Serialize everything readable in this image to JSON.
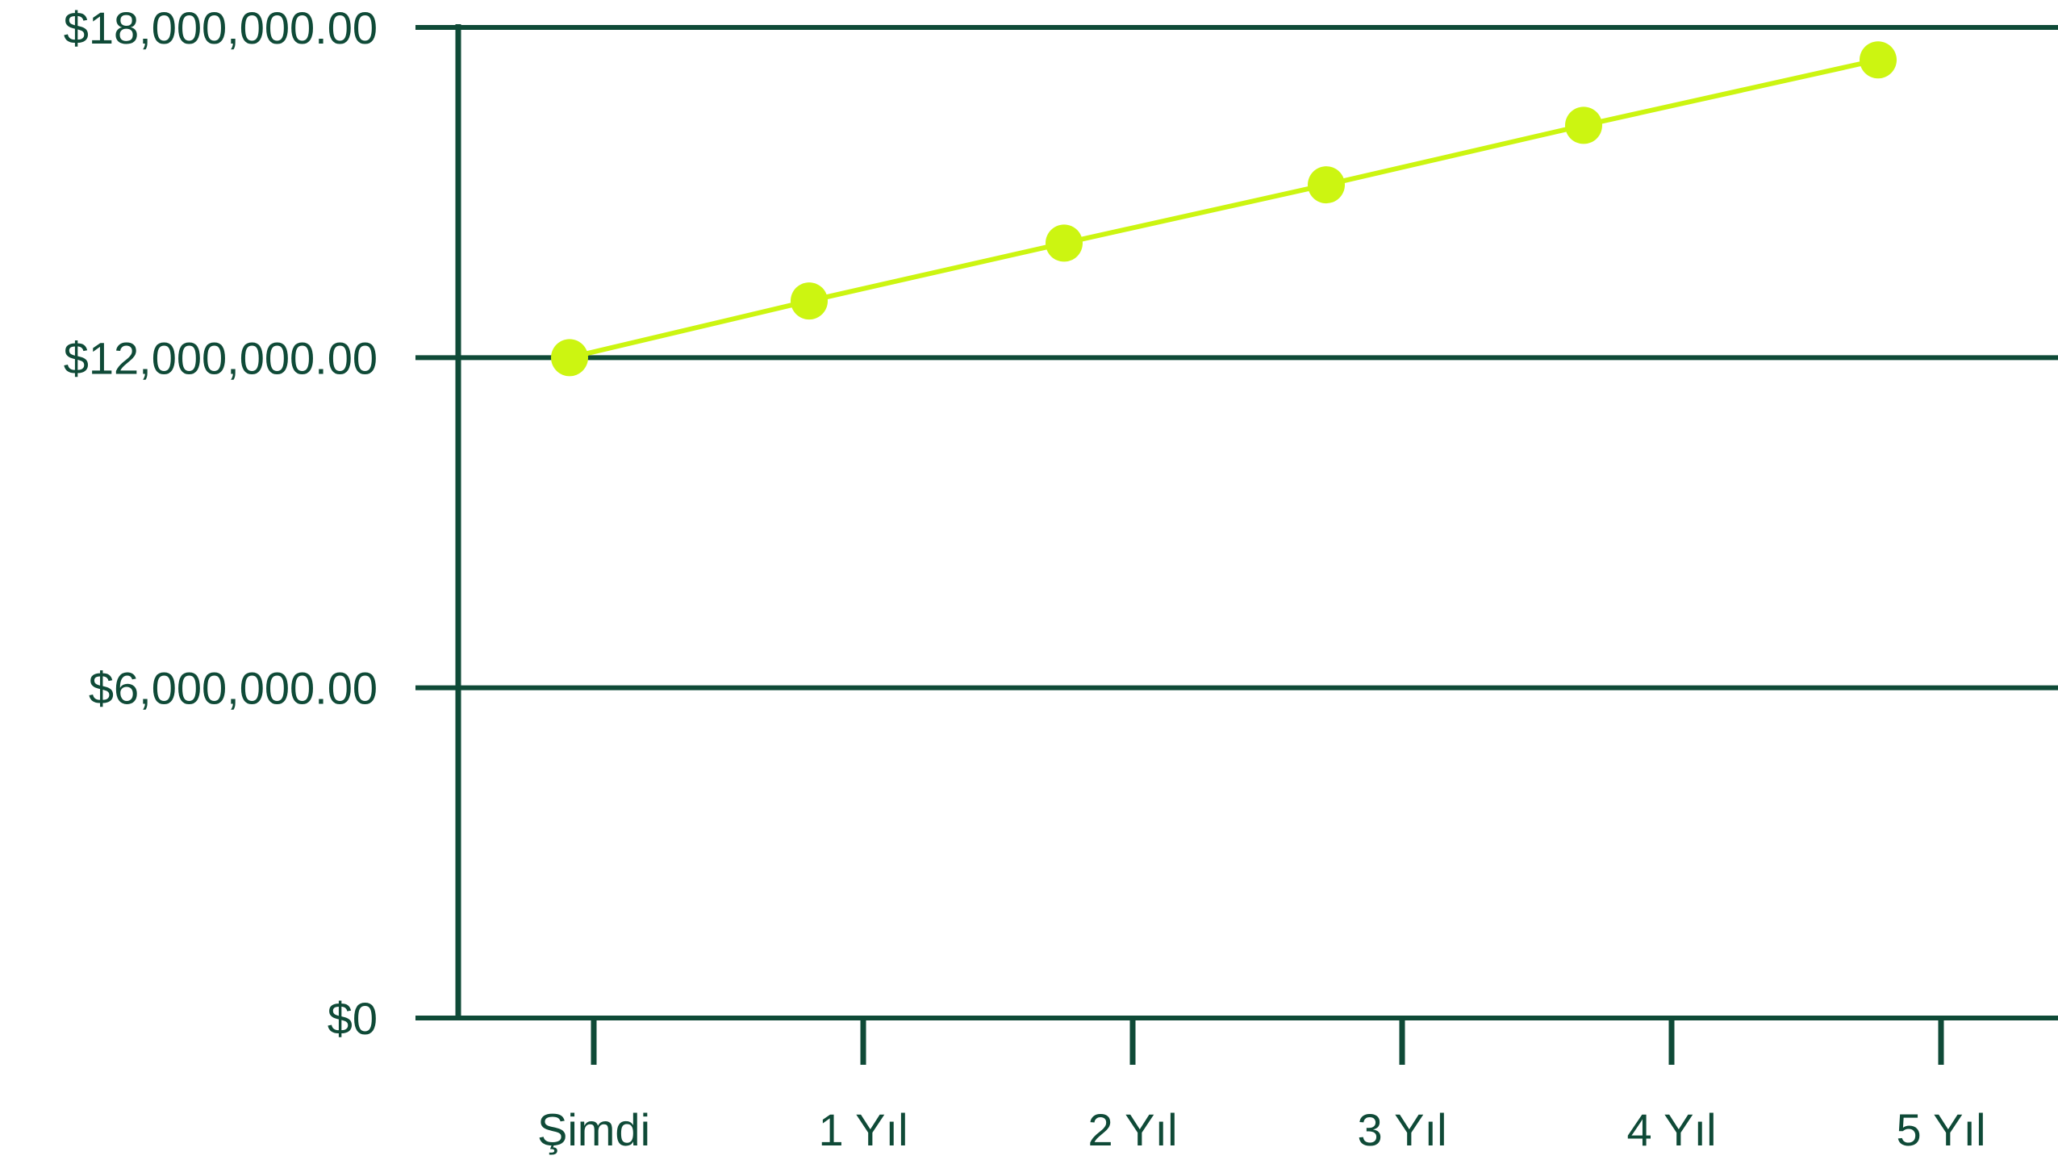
{
  "chart_data": {
    "type": "line",
    "categories": [
      "Şimdi",
      "1 Yıl",
      "2 Yıl",
      "3 Yıl",
      "4 Yıl",
      "5 Yıl"
    ],
    "series": [
      {
        "values": [
          12000000,
          13030000,
          14080000,
          15140000,
          16220000,
          17410000
        ]
      }
    ],
    "y_ticks": [
      0,
      6000000,
      12000000,
      18000000
    ],
    "y_tick_labels": [
      "$0",
      "$6,000,000.00",
      "$12,000,000.00",
      "$18,000,000.00"
    ],
    "ylim": [
      0,
      18000000
    ],
    "grid": true,
    "legend": "none",
    "colors": {
      "axis": "#0f4a37",
      "line": "#ccf511",
      "text": "#0f4a37"
    }
  }
}
